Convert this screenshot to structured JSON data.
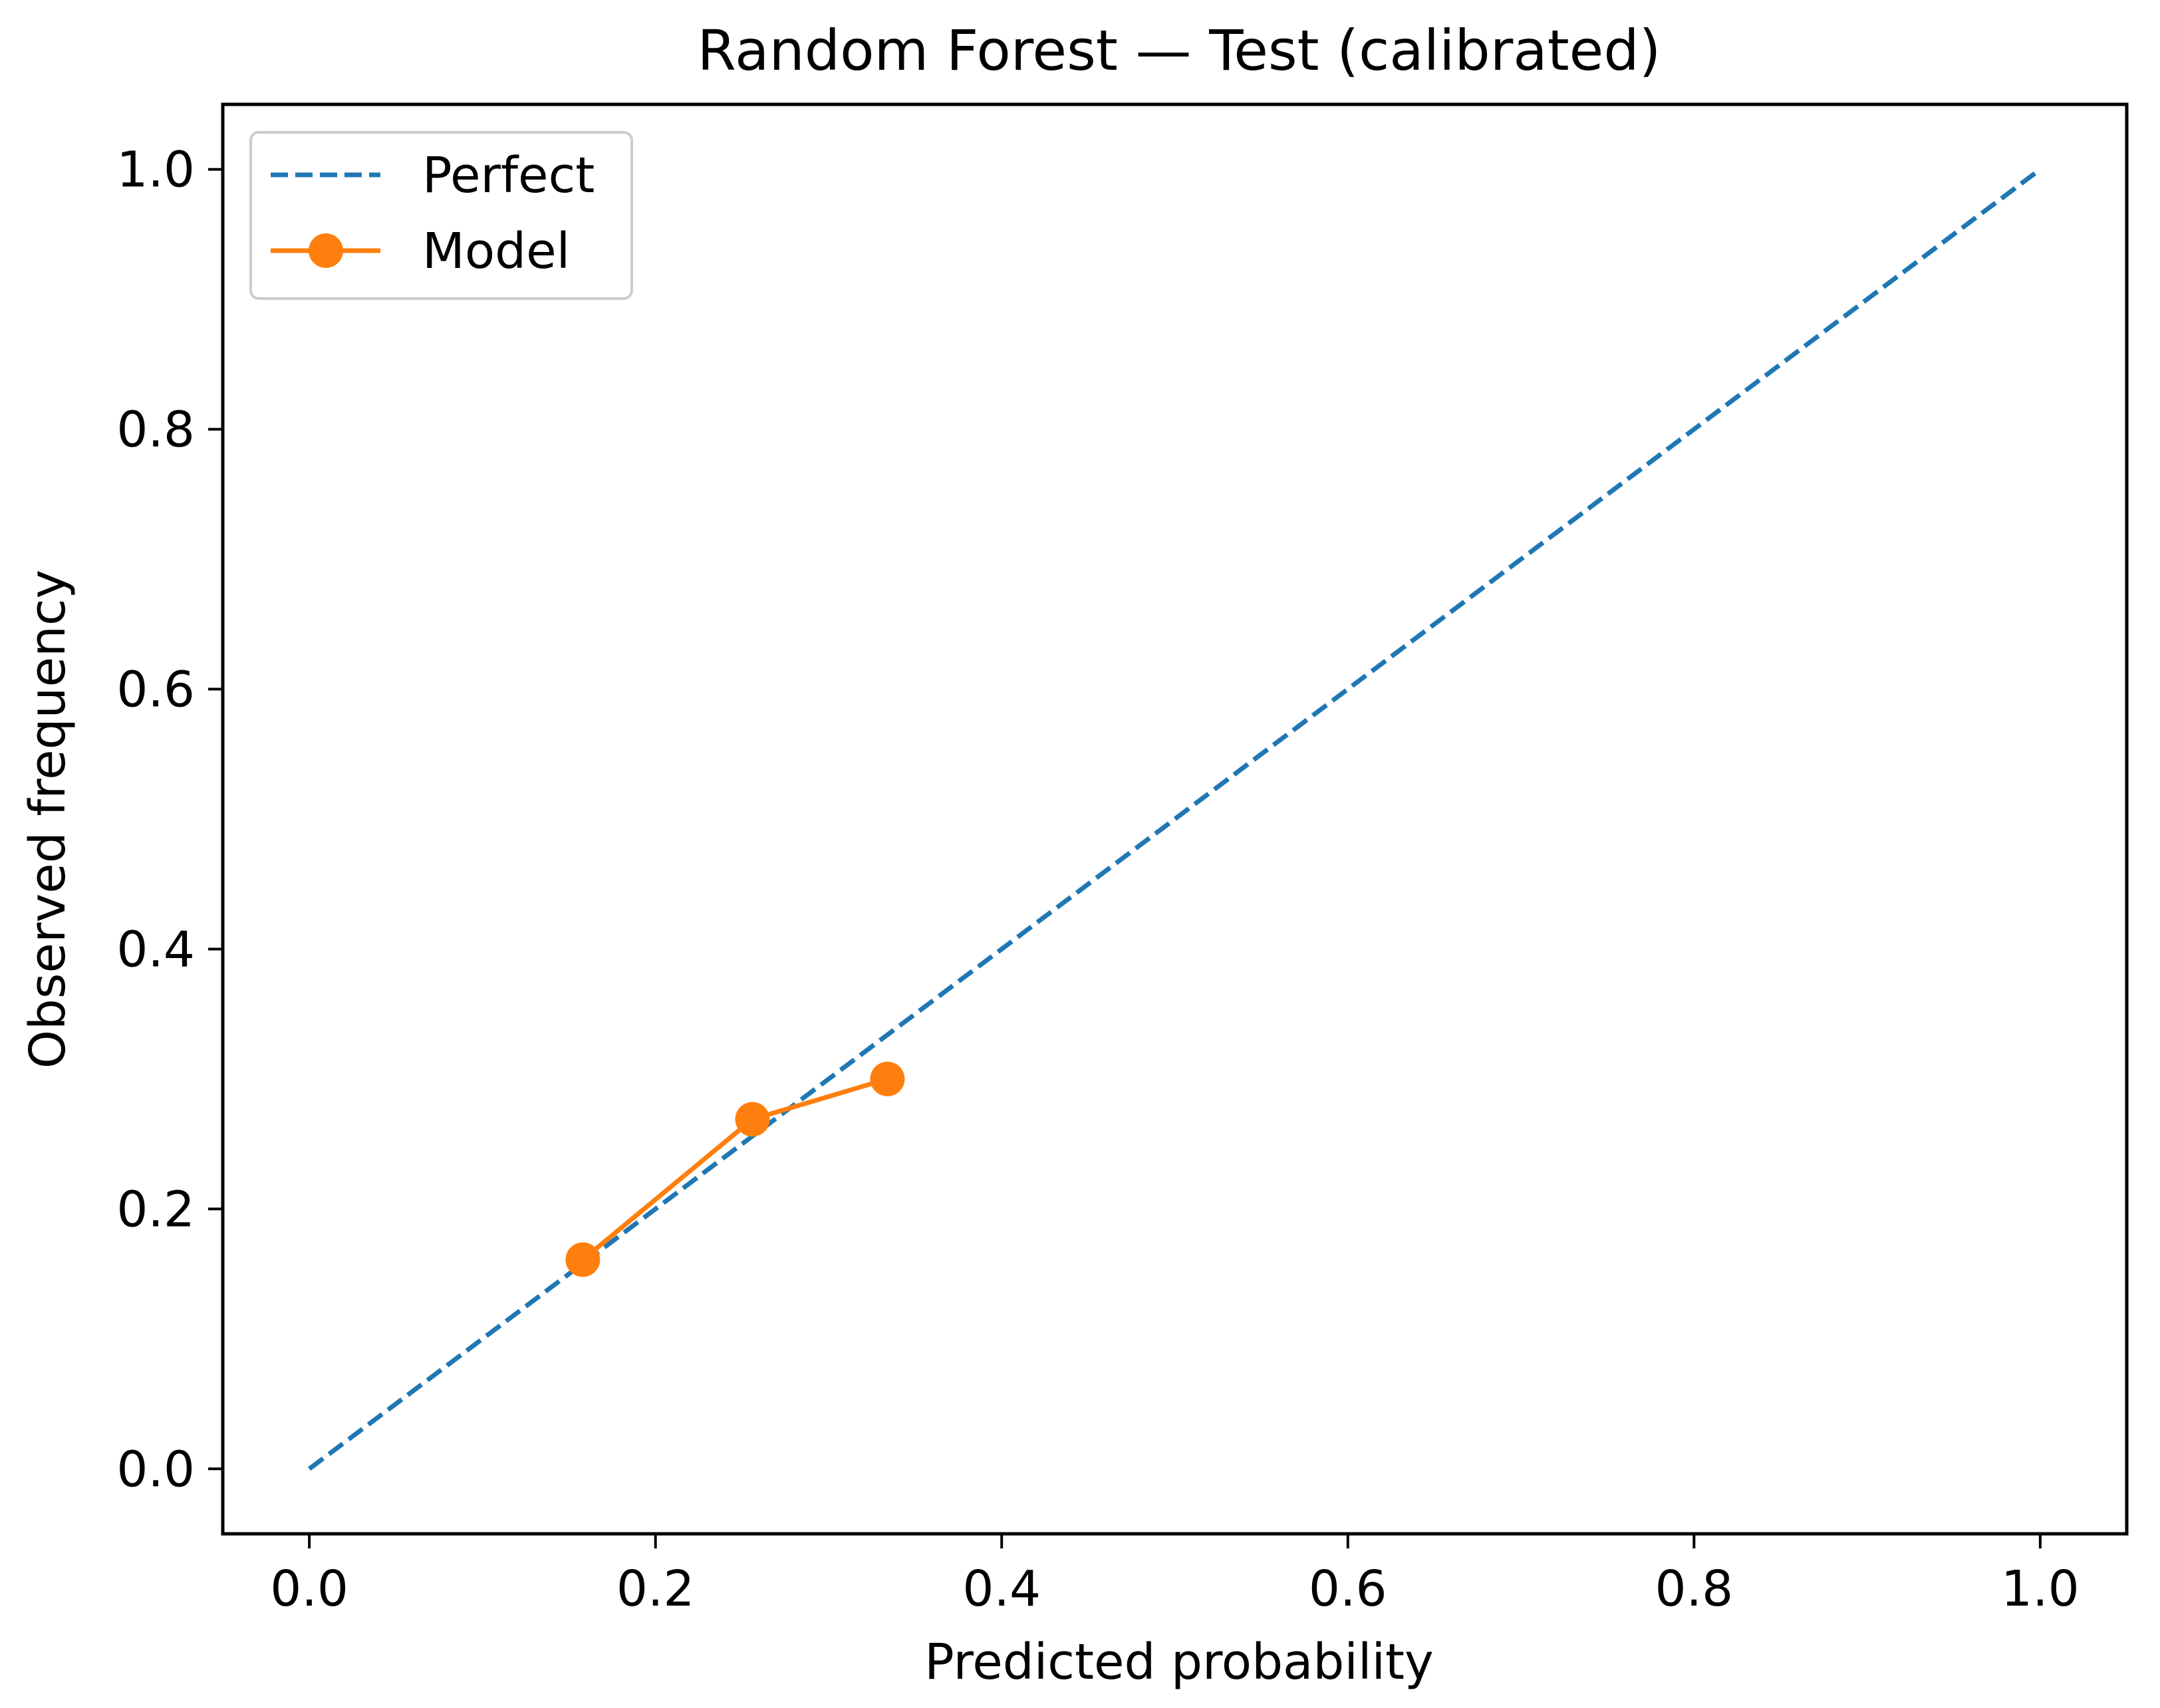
{
  "chart_data": {
    "type": "line",
    "title": "Random Forest — Test (calibrated)",
    "xlabel": "Predicted probability",
    "ylabel": "Observed frequency",
    "xlim": [
      -0.05,
      1.05
    ],
    "ylim": [
      -0.05,
      1.05
    ],
    "x_ticks": [
      0.0,
      0.2,
      0.4,
      0.6,
      0.8,
      1.0
    ],
    "y_ticks": [
      0.0,
      0.2,
      0.4,
      0.6,
      0.8,
      1.0
    ],
    "x_tick_labels": [
      "0.0",
      "0.2",
      "0.4",
      "0.6",
      "0.8",
      "1.0"
    ],
    "y_tick_labels": [
      "0.0",
      "0.2",
      "0.4",
      "0.6",
      "0.8",
      "1.0"
    ],
    "grid": false,
    "legend_position": "top-left",
    "series": [
      {
        "name": "Perfect",
        "style": "dashed",
        "color": "#1f77b4",
        "x": [
          0.0,
          1.0
        ],
        "y": [
          0.0,
          1.0
        ]
      },
      {
        "name": "Model",
        "style": "solid-with-markers",
        "color": "#ff7f0e",
        "x": [
          0.158,
          0.256,
          0.334
        ],
        "y": [
          0.161,
          0.269,
          0.3
        ]
      }
    ]
  }
}
